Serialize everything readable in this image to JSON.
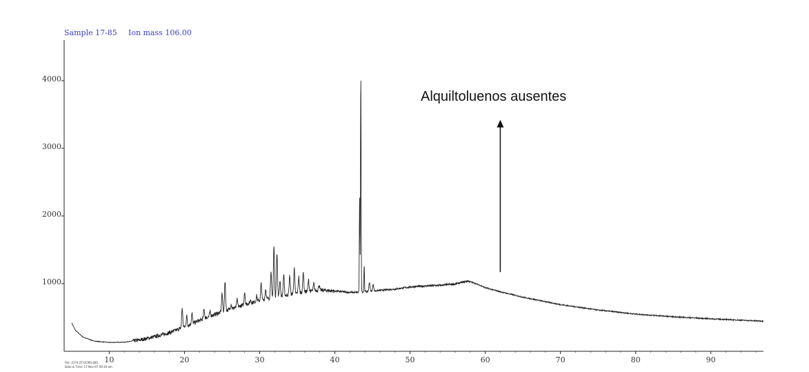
{
  "header": {
    "sample": "Sample 17-85",
    "ion": "Ion mass 106.00"
  },
  "footer": {
    "line1": "File: 2174-2T-GCMS-085",
    "line2": "Date & Time: 17-Nov-97 09:34 am"
  },
  "chart_data": {
    "type": "line",
    "title": "",
    "xlabel": "",
    "ylabel": "",
    "xlim": [
      4,
      97
    ],
    "ylim": [
      0,
      4600
    ],
    "x_ticks": [
      10,
      20,
      30,
      40,
      50,
      60,
      70,
      80,
      90
    ],
    "y_ticks": [
      1000,
      2000,
      3000,
      4000
    ],
    "grid": false,
    "series": [
      {
        "color": "#222222",
        "baseline": [
          [
            5.0,
            420
          ],
          [
            5.5,
            310
          ],
          [
            6.5,
            210
          ],
          [
            8,
            150
          ],
          [
            10,
            130
          ],
          [
            12,
            135
          ],
          [
            14,
            165
          ],
          [
            16,
            215
          ],
          [
            18,
            275
          ],
          [
            20,
            360
          ],
          [
            22,
            455
          ],
          [
            24,
            545
          ],
          [
            26,
            620
          ],
          [
            28,
            690
          ],
          [
            30,
            750
          ],
          [
            32,
            800
          ],
          [
            34,
            840
          ],
          [
            36,
            880
          ],
          [
            38,
            905
          ],
          [
            40,
            890
          ],
          [
            42,
            870
          ],
          [
            43,
            870
          ],
          [
            44,
            880
          ],
          [
            46,
            900
          ],
          [
            48,
            920
          ],
          [
            50,
            950
          ],
          [
            52,
            965
          ],
          [
            54,
            975
          ],
          [
            56,
            995
          ],
          [
            57.7,
            1040
          ],
          [
            59,
            990
          ],
          [
            60,
            940
          ],
          [
            62,
            880
          ],
          [
            65,
            800
          ],
          [
            70,
            690
          ],
          [
            75,
            610
          ],
          [
            80,
            550
          ],
          [
            85,
            510
          ],
          [
            90,
            480
          ],
          [
            95,
            455
          ],
          [
            97,
            445
          ]
        ],
        "peaks": [
          [
            13.5,
            150
          ],
          [
            15.2,
            120
          ],
          [
            17.0,
            180
          ],
          [
            18.4,
            260
          ],
          [
            19.7,
            640
          ],
          [
            20.3,
            520
          ],
          [
            21.0,
            560
          ],
          [
            21.8,
            450
          ],
          [
            22.6,
            620
          ],
          [
            23.4,
            580
          ],
          [
            24.2,
            540
          ],
          [
            25.0,
            860
          ],
          [
            25.4,
            1040
          ],
          [
            26.2,
            700
          ],
          [
            27.0,
            760
          ],
          [
            28.0,
            880
          ],
          [
            28.8,
            760
          ],
          [
            29.6,
            820
          ],
          [
            30.2,
            1000
          ],
          [
            30.8,
            920
          ],
          [
            31.5,
            1180
          ],
          [
            31.9,
            1550
          ],
          [
            32.3,
            1460
          ],
          [
            32.7,
            1050
          ],
          [
            33.2,
            1130
          ],
          [
            34.0,
            1120
          ],
          [
            34.6,
            1220
          ],
          [
            35.2,
            1100
          ],
          [
            35.8,
            1180
          ],
          [
            36.5,
            1050
          ],
          [
            37.2,
            1000
          ],
          [
            37.9,
            980
          ],
          [
            43.3,
            2300
          ],
          [
            43.45,
            4100
          ],
          [
            43.9,
            1270
          ],
          [
            44.6,
            1020
          ],
          [
            45.1,
            990
          ]
        ]
      }
    ],
    "annotation": {
      "text": "Alquiltoluenos ausentes",
      "arrow_x": 62,
      "arrow_from": 1170,
      "arrow_to": 3400
    }
  }
}
